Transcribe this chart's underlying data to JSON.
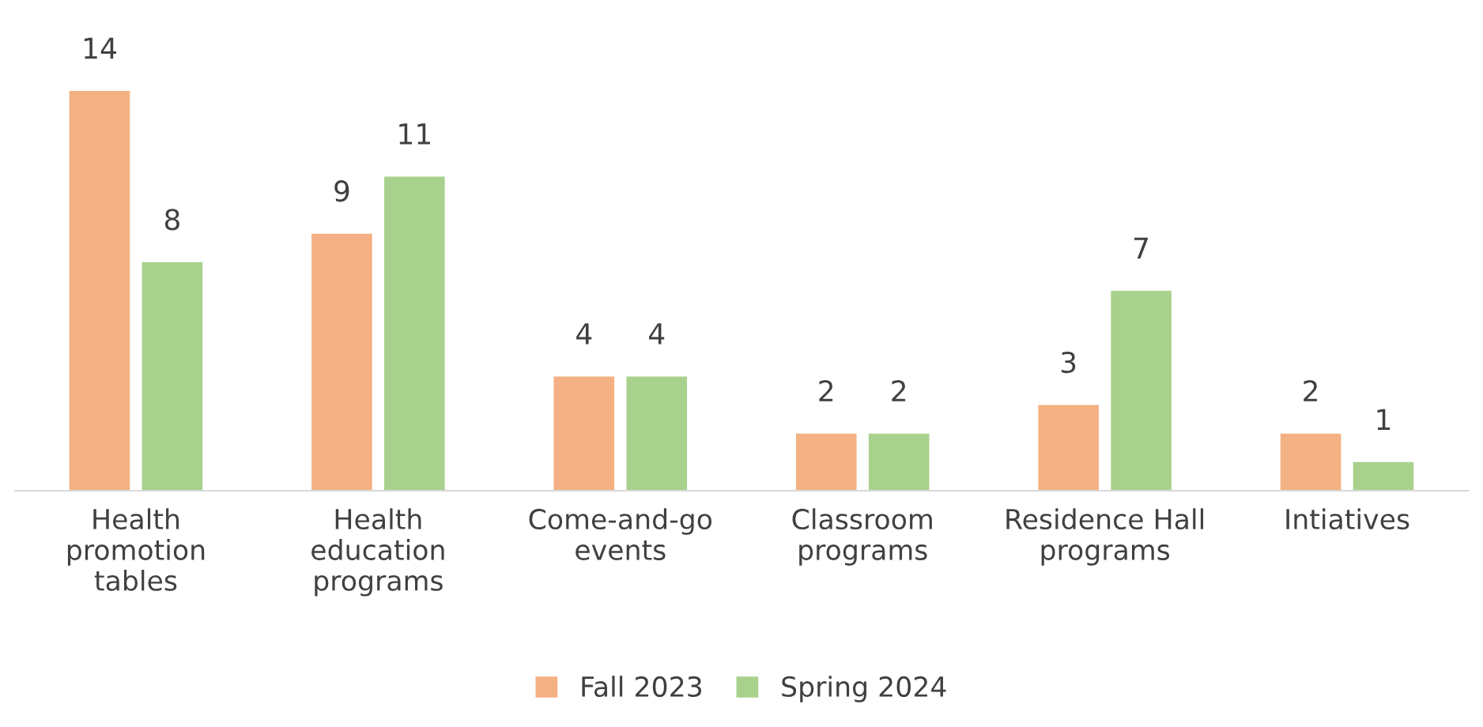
{
  "chart_data": {
    "type": "bar",
    "categories": [
      "Health\npromotion\ntables",
      "Health\neducation\nprograms",
      "Come-and-go\nevents",
      "Classroom\nprograms",
      "Residence Hall\nprograms",
      "Intiatives"
    ],
    "series": [
      {
        "name": "Fall 2023",
        "color": "#f4b183",
        "values": [
          14,
          9,
          4,
          2,
          3,
          2
        ]
      },
      {
        "name": "Spring 2024",
        "color": "#a9d18e",
        "values": [
          8,
          11,
          4,
          2,
          7,
          1
        ]
      }
    ],
    "data_labels": true,
    "legend": "bottom",
    "grid": false,
    "tick_labels": "x"
  }
}
